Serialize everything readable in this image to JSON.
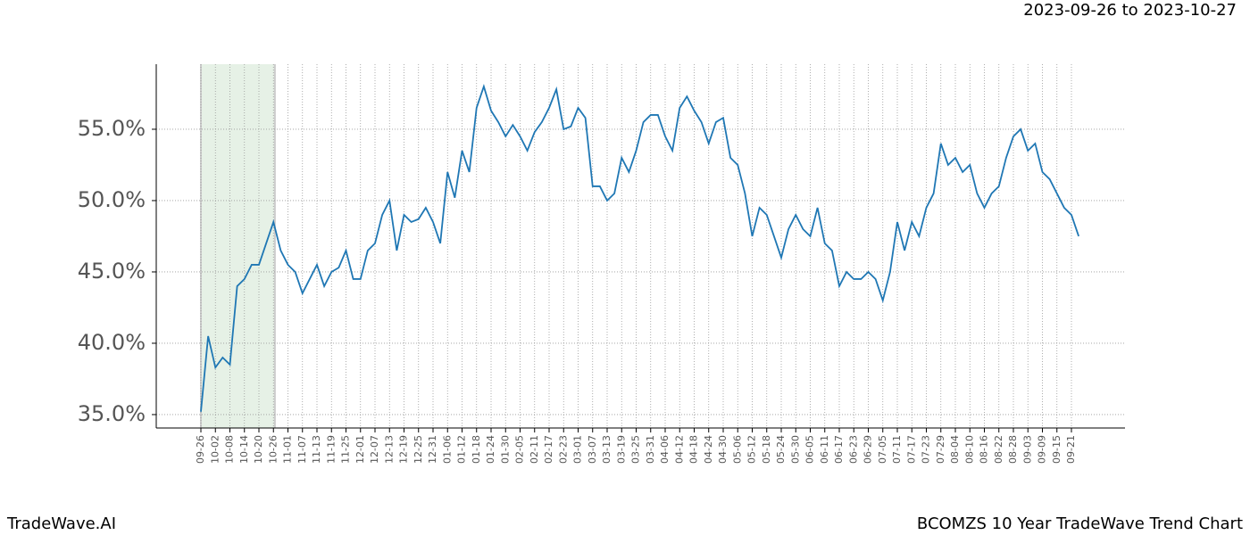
{
  "chart_data": {
    "type": "line",
    "title": "BCOMZS 10 Year TradeWave Trend Chart",
    "date_range": "2023-09-26 to 2023-10-27",
    "brand": "TradeWave.AI",
    "categories": [
      "09-26",
      null,
      "10-02",
      null,
      "10-08",
      null,
      "10-14",
      null,
      "10-20",
      null,
      "10-26",
      null,
      "11-01",
      null,
      "11-07",
      null,
      "11-13",
      null,
      "11-19",
      null,
      "11-25",
      null,
      "12-01",
      null,
      "12-07",
      null,
      "12-13",
      null,
      "12-19",
      null,
      "12-25",
      null,
      "12-31",
      null,
      "01-06",
      null,
      "01-12",
      null,
      "01-18",
      null,
      "01-24",
      null,
      "01-30",
      null,
      "02-05",
      null,
      "02-11",
      null,
      "02-17",
      null,
      "02-23",
      null,
      "03-01",
      null,
      "03-07",
      null,
      "03-13",
      null,
      "03-19",
      null,
      "03-25",
      null,
      "03-31",
      null,
      "04-06",
      null,
      "04-12",
      null,
      "04-18",
      null,
      "04-24",
      null,
      "04-30",
      null,
      "05-06",
      null,
      "05-12",
      null,
      "05-18",
      null,
      "05-24",
      null,
      "05-30",
      null,
      "06-05",
      null,
      "06-11",
      null,
      "06-17",
      null,
      "06-23",
      null,
      "06-29",
      null,
      "07-05",
      null,
      "07-11",
      null,
      "07-17",
      null,
      "07-23",
      null,
      "07-29",
      null,
      "08-04",
      null,
      "08-10",
      null,
      "08-16",
      null,
      "08-22",
      null,
      "08-28",
      null,
      "09-03",
      null,
      "09-09",
      null,
      "09-15",
      null,
      "09-21",
      null
    ],
    "series": [
      {
        "name": "BCOMZS",
        "color": "#1f77b4",
        "values": [
          35.2,
          40.5,
          38.3,
          39,
          38.5,
          44,
          44.5,
          45.5,
          45.5,
          47,
          48.5,
          46.5,
          45.5,
          45,
          43.5,
          44.5,
          45.5,
          44,
          45,
          45.3,
          46.5,
          44.5,
          44.5,
          46.5,
          47,
          49,
          50,
          46.5,
          49,
          48.5,
          48.7,
          49.5,
          48.5,
          47,
          52,
          50.2,
          53.5,
          52,
          56.5,
          58,
          56.3,
          55.5,
          54.5,
          55.3,
          54.5,
          53.5,
          54.8,
          55.5,
          56.5,
          57.8,
          55,
          55.2,
          56.5,
          55.8,
          51,
          51,
          50,
          50.5,
          53,
          52,
          53.5,
          55.5,
          56,
          56,
          54.5,
          53.5,
          56.5,
          57.3,
          56.3,
          55.5,
          54,
          55.5,
          55.8,
          53,
          52.5,
          50.5,
          47.5,
          49.5,
          49,
          47.5,
          46,
          48,
          49,
          48,
          47.5,
          49.5,
          47,
          46.5,
          44,
          45,
          44.5,
          44.5,
          45,
          44.5,
          43,
          45,
          48.5,
          46.5,
          48.5,
          47.5,
          49.5,
          50.5,
          54,
          52.5,
          53,
          52,
          52.5,
          50.5,
          49.5,
          50.5,
          51,
          53,
          54.5,
          55,
          53.5,
          54,
          52,
          51.5,
          50.5,
          49.5,
          49,
          47.5
        ]
      }
    ],
    "ylim": [
      34.06,
      59.56
    ],
    "yticks": [
      {
        "value": 35,
        "label": "35.0%"
      },
      {
        "value": 40,
        "label": "40.0%"
      },
      {
        "value": 45,
        "label": "45.0%"
      },
      {
        "value": 50,
        "label": "50.0%"
      },
      {
        "value": 55,
        "label": "55.0%"
      }
    ],
    "grid": true
  }
}
